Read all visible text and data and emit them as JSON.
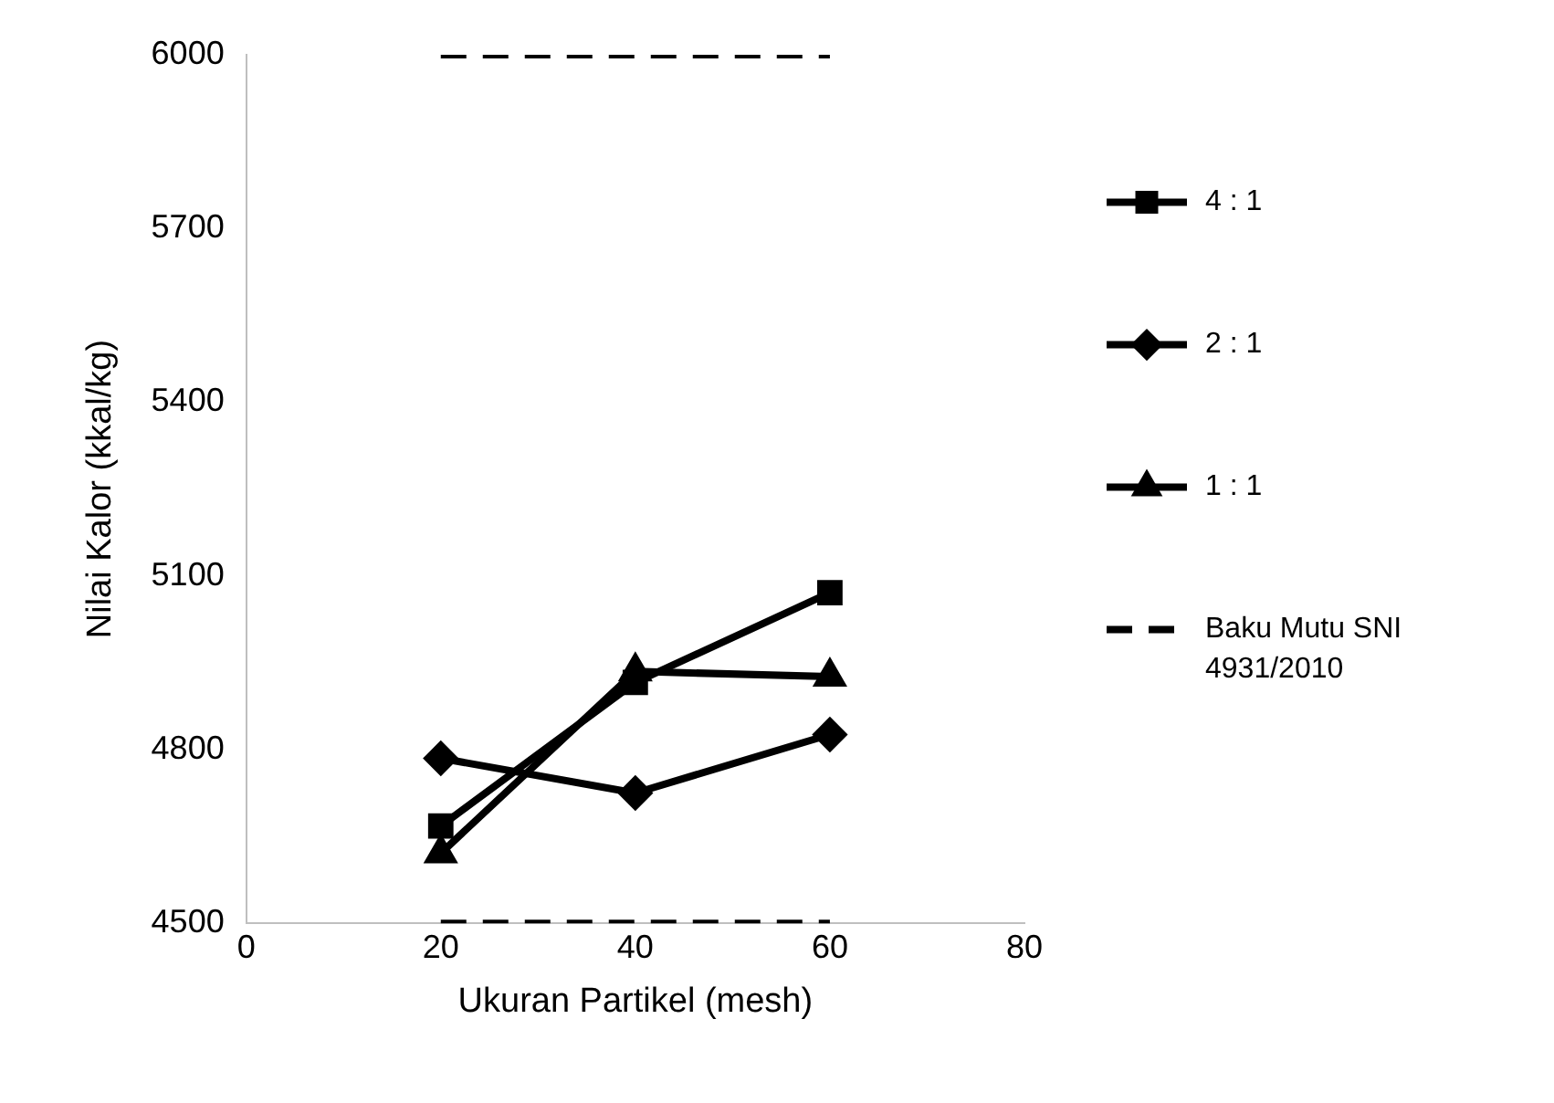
{
  "chart_data": {
    "type": "line",
    "xlabel": "Ukuran Partikel (mesh)",
    "ylabel": "Nilai Kalor (kkal/kg)",
    "x": [
      20,
      40,
      60
    ],
    "xlim": [
      0,
      80
    ],
    "xticks": [
      0,
      20,
      40,
      60,
      80
    ],
    "ylim": [
      4500,
      6000
    ],
    "yticks": [
      4500,
      4800,
      5100,
      5400,
      5700,
      6000
    ],
    "grid": false,
    "legend": "right",
    "series": [
      {
        "name": "4 : 1",
        "color": "#000000",
        "values": [
          4668,
          4916,
          5071
        ],
        "marker": "square",
        "line_style": "solid"
      },
      {
        "name": "2 : 1",
        "color": "#000000",
        "values": [
          4785,
          4725,
          4826
        ],
        "marker": "diamond",
        "line_style": "solid"
      },
      {
        "name": "1 : 1",
        "color": "#000000",
        "values": [
          4621,
          4935,
          4926
        ],
        "marker": "triangle",
        "line_style": "solid"
      },
      {
        "name": "Baku Mutu SNI 4931/2010",
        "color": "#000000",
        "values": [
          6000,
          6000,
          6000
        ],
        "marker": "none",
        "line_style": "dashed"
      },
      {
        "color": "#000000",
        "values": [
          4500,
          4500,
          4500
        ],
        "marker": "none",
        "line_style": "dashed"
      }
    ]
  }
}
